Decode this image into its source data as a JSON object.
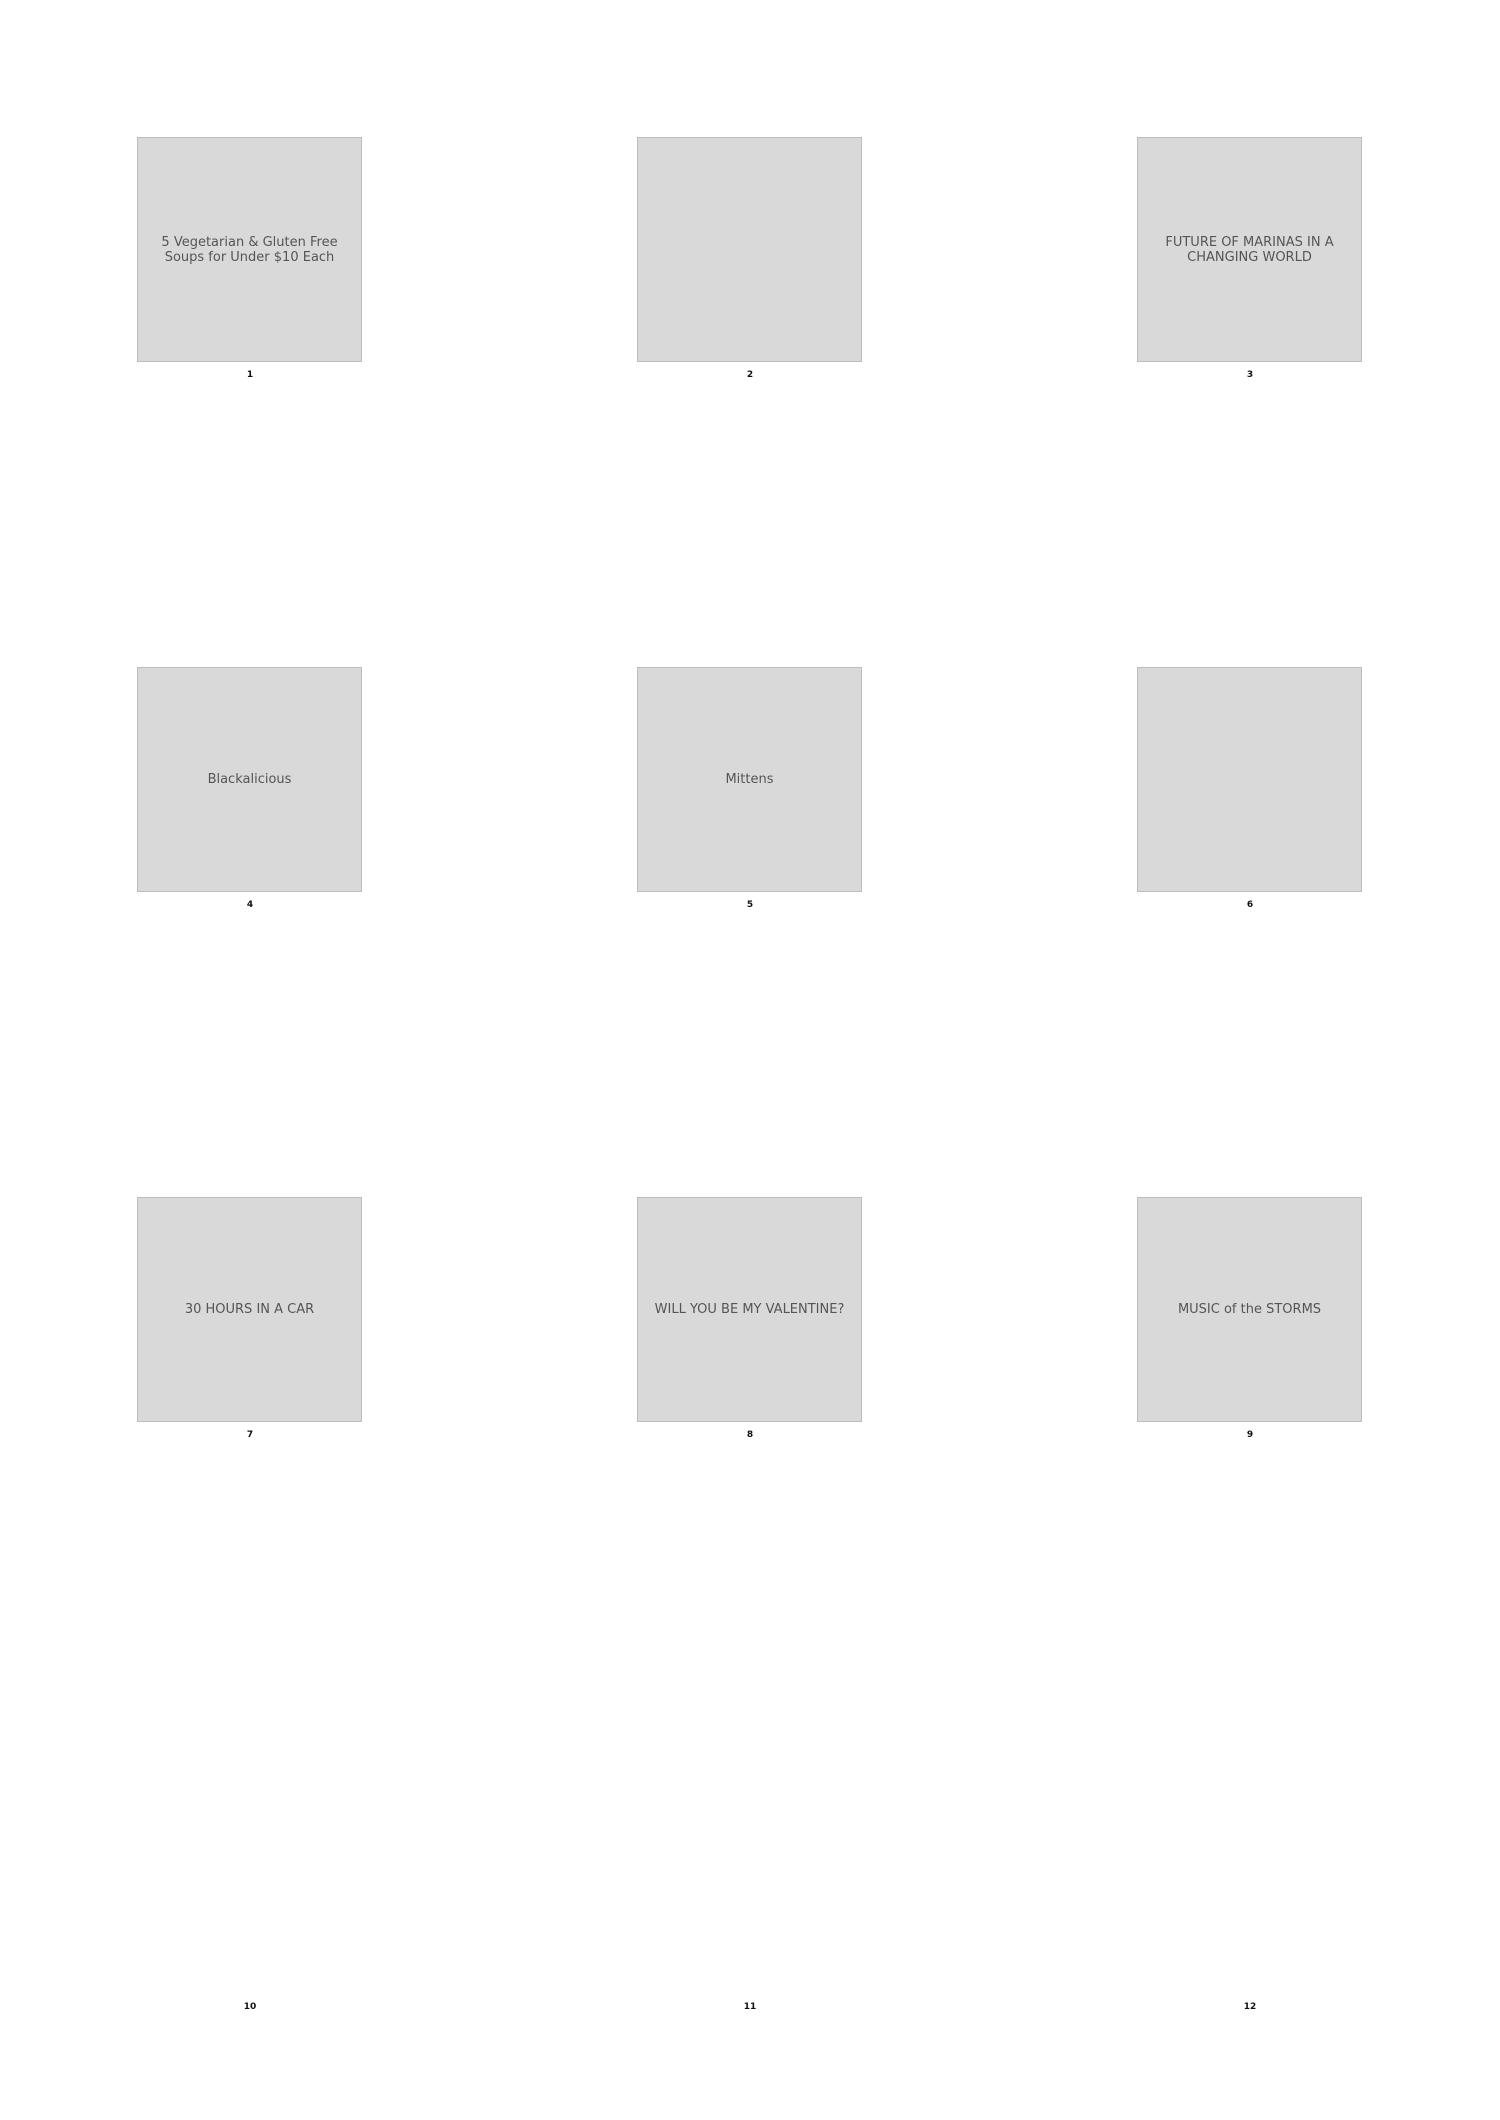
{
  "panels": [
    {
      "number": "1",
      "caption": "5 Vegetarian & Gluten Free Soups for Under $10 Each"
    },
    {
      "number": "2",
      "caption": ""
    },
    {
      "number": "3",
      "caption": "FUTURE OF MARINAS IN A CHANGING WORLD"
    },
    {
      "number": "4",
      "caption": "Blackalicious"
    },
    {
      "number": "5",
      "caption": "Mittens"
    },
    {
      "number": "6",
      "caption": ""
    },
    {
      "number": "7",
      "caption": "30 HOURS IN A CAR"
    },
    {
      "number": "8",
      "caption": "WILL YOU BE MY VALENTINE?"
    },
    {
      "number": "9",
      "caption": "MUSIC of the STORMS"
    },
    {
      "number": "10"
    },
    {
      "number": "11"
    },
    {
      "number": "12"
    }
  ]
}
